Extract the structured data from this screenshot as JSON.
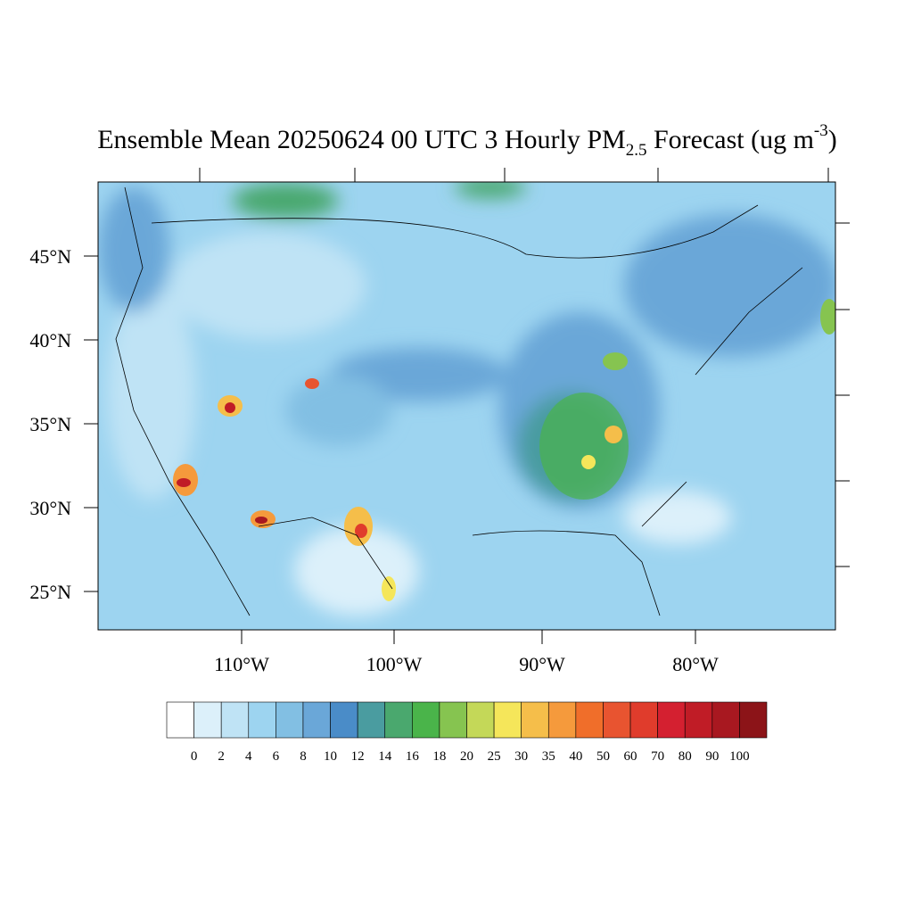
{
  "title": {
    "main": "Ensemble Mean 20250624 00 UTC 3 Hourly PM",
    "sub": "2.5",
    "mid": " Forecast (ug m",
    "sup": "-3",
    "end": ")"
  },
  "lat_labels": [
    "45°N",
    "40°N",
    "35°N",
    "30°N",
    "25°N"
  ],
  "lon_labels": [
    "110°W",
    "100°W",
    "90°W",
    "80°W"
  ],
  "colorbar": {
    "levels": [
      0,
      2,
      4,
      6,
      8,
      10,
      12,
      14,
      16,
      18,
      20,
      25,
      30,
      35,
      40,
      50,
      60,
      70,
      80,
      90,
      100
    ],
    "colors": [
      "#ffffff",
      "#dcf0fa",
      "#bfe3f5",
      "#9dd4f0",
      "#82bfe3",
      "#6aa7d8",
      "#4a8cc8",
      "#4a9ca0",
      "#4aa86e",
      "#4ab44a",
      "#86c450",
      "#c4d858",
      "#f5e65a",
      "#f5be4a",
      "#f59a3c",
      "#f06e2a",
      "#e85430",
      "#e03c2c",
      "#d42030",
      "#c01c26",
      "#a81820",
      "#8c1418"
    ]
  }
}
